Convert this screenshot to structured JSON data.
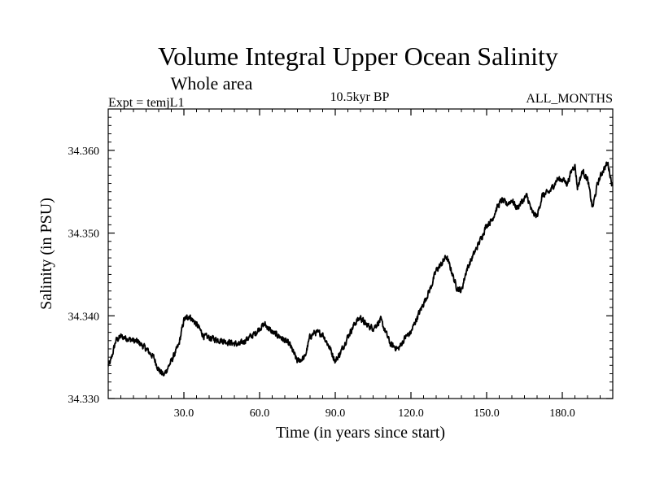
{
  "chart_data": {
    "type": "line",
    "title": "Volume Integral Upper Ocean Salinity",
    "subtitle": "Whole area",
    "left_label": "Expt = temjL1",
    "center_label": "10.5kyr BP",
    "right_label": "ALL_MONTHS",
    "xlabel": "Time (in years since start)",
    "ylabel": "Salinity (in PSU)",
    "xlim": [
      0,
      200
    ],
    "ylim": [
      34.33,
      34.365
    ],
    "x_ticks": [
      30,
      60,
      90,
      120,
      150,
      180
    ],
    "x_tick_labels": [
      "30.0",
      "60.0",
      "90.0",
      "120.0",
      "150.0",
      "180.0"
    ],
    "y_ticks": [
      34.33,
      34.34,
      34.35,
      34.36
    ],
    "y_tick_labels": [
      "34.330",
      "34.340",
      "34.350",
      "34.360"
    ],
    "series": [
      {
        "name": "salinity",
        "color": "#000000",
        "x": [
          0,
          1,
          3,
          5,
          8,
          12,
          15,
          18,
          20,
          22,
          25,
          28,
          30,
          32,
          35,
          38,
          42,
          45,
          48,
          52,
          55,
          58,
          60,
          62,
          65,
          68,
          70,
          72,
          75,
          78,
          80,
          82,
          85,
          88,
          90,
          92,
          95,
          98,
          100,
          102,
          105,
          108,
          110,
          112,
          115,
          118,
          120,
          122,
          125,
          128,
          130,
          132,
          134,
          136,
          138,
          140,
          142,
          145,
          148,
          150,
          152,
          154,
          156,
          158,
          160,
          162,
          164,
          166,
          168,
          170,
          172,
          175,
          178,
          180,
          182,
          184,
          185,
          186,
          188,
          190,
          192,
          194,
          196,
          198,
          200
        ],
        "y": [
          34.334,
          34.3345,
          34.337,
          34.3375,
          34.3372,
          34.3368,
          34.336,
          34.335,
          34.3335,
          34.3328,
          34.3345,
          34.3365,
          34.3395,
          34.34,
          34.339,
          34.3375,
          34.3372,
          34.337,
          34.3368,
          34.3365,
          34.3372,
          34.3378,
          34.3385,
          34.339,
          34.338,
          34.3375,
          34.337,
          34.3365,
          34.3345,
          34.335,
          34.3375,
          34.338,
          34.3378,
          34.336,
          34.3345,
          34.3355,
          34.3375,
          34.3392,
          34.3398,
          34.339,
          34.3385,
          34.3395,
          34.338,
          34.3365,
          34.336,
          34.3375,
          34.338,
          34.3395,
          34.3415,
          34.3435,
          34.3455,
          34.3462,
          34.3472,
          34.3455,
          34.3435,
          34.343,
          34.3455,
          34.3475,
          34.3495,
          34.351,
          34.3515,
          34.353,
          34.354,
          34.3535,
          34.354,
          34.353,
          34.3538,
          34.3545,
          34.3525,
          34.352,
          34.3545,
          34.355,
          34.3565,
          34.3565,
          34.356,
          34.3578,
          34.3582,
          34.3555,
          34.3575,
          34.3565,
          34.353,
          34.356,
          34.3575,
          34.3585,
          34.3555
        ]
      }
    ]
  }
}
